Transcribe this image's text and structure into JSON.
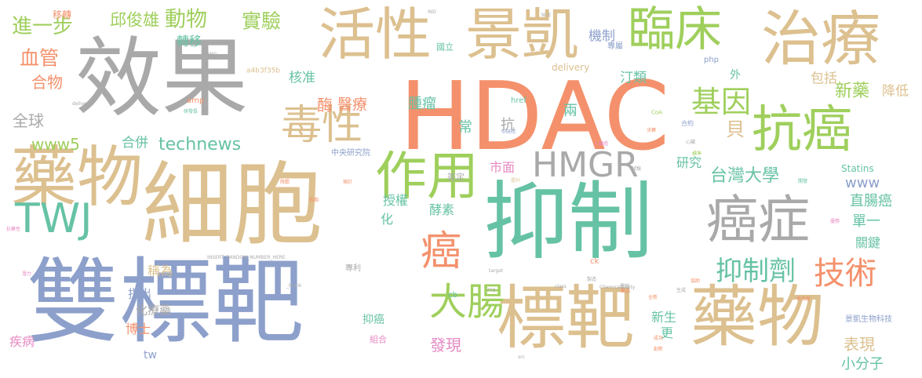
{
  "palette": {
    "orange": "#f4916c",
    "tan": "#dcc08f",
    "gray": "#a9a9a9",
    "green": "#9fcf5c",
    "teal": "#66c2a5",
    "blue": "#8da0cb",
    "pink": "#e78ac3"
  },
  "words": [
    {
      "text": "HDAC",
      "color": "orange"
    },
    {
      "text": "效果",
      "color": "gray"
    },
    {
      "text": "細胞",
      "color": "tan"
    },
    {
      "text": "雙標靶",
      "color": "blue"
    },
    {
      "text": "抑制",
      "color": "teal"
    },
    {
      "text": "標靶",
      "color": "tan"
    },
    {
      "text": "藥物",
      "color": "tan"
    },
    {
      "text": "藥物",
      "color": "tan"
    },
    {
      "text": "活性",
      "color": "tan"
    },
    {
      "text": "景凱",
      "color": "tan"
    },
    {
      "text": "臨床",
      "color": "green"
    },
    {
      "text": "治療",
      "color": "tan"
    },
    {
      "text": "抗癌",
      "color": "green"
    },
    {
      "text": "癌症",
      "color": "gray"
    },
    {
      "text": "TWJ",
      "color": "teal"
    },
    {
      "text": "作用",
      "color": "green"
    },
    {
      "text": "毒性",
      "color": "tan"
    },
    {
      "text": "HMGR",
      "color": "gray"
    },
    {
      "text": "大腸",
      "color": "green"
    },
    {
      "text": "技術",
      "color": "orange"
    },
    {
      "text": "抑制劑",
      "color": "teal"
    },
    {
      "text": "癌",
      "color": "orange"
    },
    {
      "text": "基因",
      "color": "green"
    },
    {
      "text": "進一步",
      "color": "green"
    },
    {
      "text": "邱俊雄",
      "color": "green"
    },
    {
      "text": "動物",
      "color": "green"
    },
    {
      "text": "實驗",
      "color": "green"
    },
    {
      "text": "血管",
      "color": "orange"
    },
    {
      "text": "合物",
      "color": "orange"
    },
    {
      "text": "全球",
      "color": "gray"
    },
    {
      "text": "www5",
      "color": "green"
    },
    {
      "text": "technews",
      "color": "teal"
    },
    {
      "text": "合併",
      "color": "teal"
    },
    {
      "text": "轉移",
      "color": "teal"
    },
    {
      "text": "移轉",
      "color": "orange"
    },
    {
      "text": "核准",
      "color": "teal"
    },
    {
      "text": "酶",
      "color": "orange"
    },
    {
      "text": "醫療",
      "color": "orange"
    },
    {
      "text": "腫瘤",
      "color": "teal"
    },
    {
      "text": "機制",
      "color": "blue"
    },
    {
      "text": "汀類",
      "color": "teal"
    },
    {
      "text": "兩",
      "color": "teal"
    },
    {
      "text": "常",
      "color": "teal"
    },
    {
      "text": "抗",
      "color": "gray"
    },
    {
      "text": "新藥",
      "color": "green"
    },
    {
      "text": "包括",
      "color": "tan"
    },
    {
      "text": "降低",
      "color": "tan"
    },
    {
      "text": "貝",
      "color": "tan"
    },
    {
      "text": "研究",
      "color": "teal"
    },
    {
      "text": "台灣大學",
      "color": "teal"
    },
    {
      "text": "市面",
      "color": "pink"
    },
    {
      "text": "www",
      "color": "blue"
    },
    {
      "text": "直腸癌",
      "color": "teal"
    },
    {
      "text": "Statins",
      "color": "teal"
    },
    {
      "text": "授權",
      "color": "teal"
    },
    {
      "text": "酵素",
      "color": "teal"
    },
    {
      "text": "化",
      "color": "teal"
    },
    {
      "text": "單一",
      "color": "teal"
    },
    {
      "text": "關鍵",
      "color": "teal"
    },
    {
      "text": "稱為",
      "color": "tan"
    },
    {
      "text": "指出",
      "color": "blue"
    },
    {
      "text": "化療藥",
      "color": "gray"
    },
    {
      "text": "博士",
      "color": "orange"
    },
    {
      "text": "tw",
      "color": "blue"
    },
    {
      "text": "疾病",
      "color": "pink"
    },
    {
      "text": "抑癌",
      "color": "teal"
    },
    {
      "text": "發現",
      "color": "pink"
    },
    {
      "text": "新生",
      "color": "teal"
    },
    {
      "text": "更",
      "color": "teal"
    },
    {
      "text": "表現",
      "color": "tan"
    },
    {
      "text": "小分子",
      "color": "teal"
    },
    {
      "text": "a4b3f35b",
      "color": "tan"
    },
    {
      "text": "中央研究院",
      "color": "blue"
    },
    {
      "text": "delivery",
      "color": "tan"
    },
    {
      "text": "href",
      "color": "teal"
    },
    {
      "text": "amp",
      "color": "orange"
    },
    {
      "text": "php",
      "color": "blue"
    },
    {
      "text": "外",
      "color": "teal"
    },
    {
      "text": "國立",
      "color": "teal"
    },
    {
      "text": "專屬",
      "color": "blue"
    },
    {
      "text": "組合",
      "color": "pink"
    },
    {
      "text": "簽定",
      "color": "gray"
    },
    {
      "text": "專利",
      "color": "gray"
    },
    {
      "text": "景凱生物科技",
      "color": "blue"
    },
    {
      "text": "合約",
      "color": "blue"
    },
    {
      "text": "CoA",
      "color": "green"
    },
    {
      "text": "ck",
      "color": "orange"
    },
    {
      "text": "cb",
      "color": "teal"
    },
    {
      "text": "INSERT_RANDOM_NUMBER_HERE",
      "color": "gray"
    },
    {
      "text": "_blank",
      "color": "gray"
    },
    {
      "text": "img",
      "color": "gray"
    },
    {
      "text": "ChemicalEntity",
      "color": "gray"
    },
    {
      "text": "IND",
      "color": "gray"
    },
    {
      "text": "NCE",
      "color": "gray"
    },
    {
      "text": "HMG",
      "color": "gray"
    },
    {
      "text": "class",
      "color": "gray"
    },
    {
      "text": "target",
      "color": "gray"
    },
    {
      "text": "src",
      "color": "gray"
    },
    {
      "text": "deliver",
      "color": "gray"
    },
    {
      "text": "創新",
      "color": "orange"
    },
    {
      "text": "使用量",
      "color": "orange"
    },
    {
      "text": "藥品",
      "color": "orange"
    },
    {
      "text": "成功",
      "color": "orange"
    },
    {
      "text": "決賽",
      "color": "orange"
    },
    {
      "text": "生成",
      "color": "gray"
    },
    {
      "text": "製造",
      "color": "gray"
    },
    {
      "text": "電腦",
      "color": "gray"
    },
    {
      "text": "全新",
      "color": "orange"
    },
    {
      "text": "中研院",
      "color": "blue"
    },
    {
      "text": "人類癌",
      "color": "pink"
    },
    {
      "text": "提升",
      "color": "tan"
    },
    {
      "text": "預計",
      "color": "orange"
    },
    {
      "text": "心臟",
      "color": "gray"
    },
    {
      "text": "研發長",
      "color": "teal"
    },
    {
      "text": "優勢",
      "color": "pink"
    },
    {
      "text": "降膽",
      "color": "orange"
    },
    {
      "text": "抗藥性",
      "color": "pink"
    },
    {
      "text": "標準",
      "color": "green"
    },
    {
      "text": "試驗",
      "color": "gray"
    },
    {
      "text": "長期",
      "color": "orange"
    },
    {
      "text": "潛力",
      "color": "pink"
    },
    {
      "text": "開發",
      "color": "teal"
    },
    {
      "text": "協助",
      "color": "orange"
    }
  ]
}
